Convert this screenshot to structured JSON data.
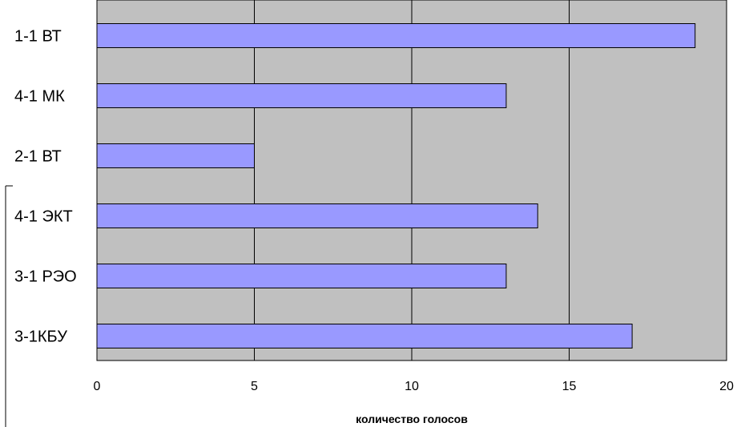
{
  "chart_data": {
    "type": "bar",
    "orientation": "horizontal",
    "categories": [
      "1-1 ВТ",
      "4-1 МК",
      "2-1 ВТ",
      "4-1 ЭКТ",
      "3-1 РЭО",
      "3-1КБУ"
    ],
    "values": [
      19,
      13,
      5,
      14,
      13,
      17
    ],
    "xlabel": "количество голосов",
    "ylabel": "",
    "xlim": [
      0,
      20
    ],
    "x_ticks": [
      "0",
      "5",
      "10",
      "15",
      "20"
    ],
    "grid": "vertical",
    "legend": "none",
    "colors": {
      "bar_fill": "#9999ff",
      "bar_stroke": "#000000",
      "plot_background": "#c0c0c0",
      "gridline": "#000000"
    }
  }
}
